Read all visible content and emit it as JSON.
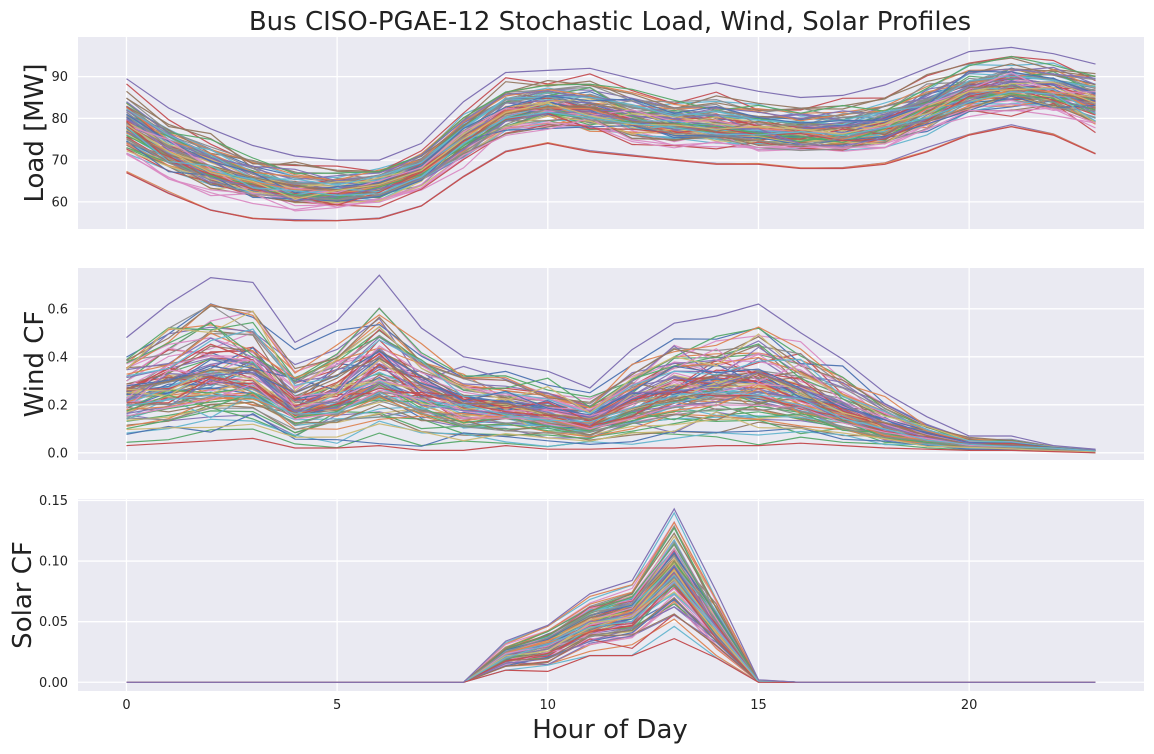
{
  "chart_data": {
    "type": "line",
    "title": "Bus CISO-PGAE-12 Stochastic Load, Wind, Solar Profiles",
    "xlabel": "Hour of Day",
    "x": [
      0,
      1,
      2,
      3,
      4,
      5,
      6,
      7,
      8,
      9,
      10,
      11,
      12,
      13,
      14,
      15,
      16,
      17,
      18,
      19,
      20,
      21,
      22,
      23
    ],
    "xlim": [
      -1.15,
      24.15
    ],
    "xticks": [
      0,
      5,
      10,
      15,
      20
    ],
    "grid": true,
    "legend": "none",
    "palette": [
      "#4c72b0",
      "#dd8452",
      "#55a868",
      "#c44e52",
      "#8172b3",
      "#937860",
      "#da8bc3",
      "#8c8c8c",
      "#ccb974",
      "#64b5cd"
    ],
    "background": "#eaeaf2",
    "num_scenarios": 100,
    "panels": [
      {
        "ylabel": "Load [MW]",
        "ylim": [
          53.5,
          99.5
        ],
        "yticks": [
          60,
          70,
          80,
          90
        ],
        "mean": [
          78,
          72,
          68,
          65,
          62.5,
          62,
          63.5,
          68,
          75,
          81,
          83,
          82,
          80,
          78.5,
          78,
          77,
          76.5,
          76.5,
          78,
          82,
          86,
          87.5,
          86.5,
          84
        ],
        "spread": [
          4,
          4,
          3.5,
          3,
          3,
          3,
          3,
          3.5,
          4,
          4.5,
          4.5,
          4.5,
          4.5,
          4.5,
          4.5,
          4.5,
          4.5,
          4.5,
          4.5,
          5,
          5,
          5,
          5,
          5
        ],
        "range_low": [
          67,
          62,
          58,
          56,
          55.5,
          55.5,
          56,
          59,
          66,
          72,
          74,
          72,
          71,
          70,
          69,
          69,
          68,
          68,
          69,
          72,
          76,
          78,
          76,
          71.5
        ],
        "range_high": [
          89.5,
          82.5,
          77.5,
          73.5,
          71,
          70,
          70,
          74,
          84,
          91,
          91.5,
          92,
          89.5,
          87,
          88.5,
          86.5,
          85,
          85.5,
          88,
          92,
          96,
          97,
          95.5,
          93
        ]
      },
      {
        "ylabel": "Wind CF",
        "ylim": [
          -0.03,
          0.77
        ],
        "yticks": [
          0.0,
          0.2,
          0.4,
          0.6
        ],
        "yticklabels": [
          "0.0",
          "0.2",
          "0.4",
          "0.6"
        ],
        "mean": [
          0.22,
          0.26,
          0.3,
          0.29,
          0.18,
          0.22,
          0.3,
          0.24,
          0.19,
          0.17,
          0.15,
          0.12,
          0.19,
          0.24,
          0.26,
          0.27,
          0.22,
          0.16,
          0.1,
          0.06,
          0.035,
          0.03,
          0.02,
          0.008
        ],
        "range_low": [
          0.03,
          0.04,
          0.05,
          0.06,
          0.02,
          0.02,
          0.03,
          0.01,
          0.01,
          0.03,
          0.015,
          0.015,
          0.02,
          0.02,
          0.03,
          0.03,
          0.04,
          0.03,
          0.02,
          0.015,
          0.01,
          0.01,
          0.005,
          0.0
        ],
        "range_high": [
          0.48,
          0.62,
          0.73,
          0.71,
          0.46,
          0.55,
          0.74,
          0.52,
          0.4,
          0.37,
          0.34,
          0.27,
          0.43,
          0.54,
          0.57,
          0.62,
          0.5,
          0.39,
          0.25,
          0.15,
          0.07,
          0.07,
          0.03,
          0.015
        ]
      },
      {
        "ylabel": "Solar CF",
        "ylim": [
          -0.0072,
          0.1512
        ],
        "yticks": [
          0.0,
          0.05,
          0.1,
          0.15
        ],
        "yticklabels": [
          "0.00",
          "0.05",
          "0.10",
          "0.15"
        ],
        "mean": [
          0,
          0,
          0,
          0,
          0,
          0,
          0,
          0,
          0,
          0.022,
          0.033,
          0.048,
          0.057,
          0.092,
          0.045,
          0.001,
          0,
          0,
          0,
          0,
          0,
          0,
          0,
          0
        ],
        "range_low": [
          0,
          0,
          0,
          0,
          0,
          0,
          0,
          0,
          0,
          0.01,
          0.009,
          0.022,
          0.022,
          0.036,
          0.02,
          0.0,
          0,
          0,
          0,
          0,
          0,
          0,
          0,
          0
        ],
        "range_high": [
          0,
          0,
          0,
          0,
          0,
          0,
          0,
          0,
          0,
          0.034,
          0.047,
          0.073,
          0.084,
          0.143,
          0.075,
          0.002,
          0,
          0,
          0,
          0,
          0,
          0,
          0,
          0
        ]
      }
    ]
  }
}
